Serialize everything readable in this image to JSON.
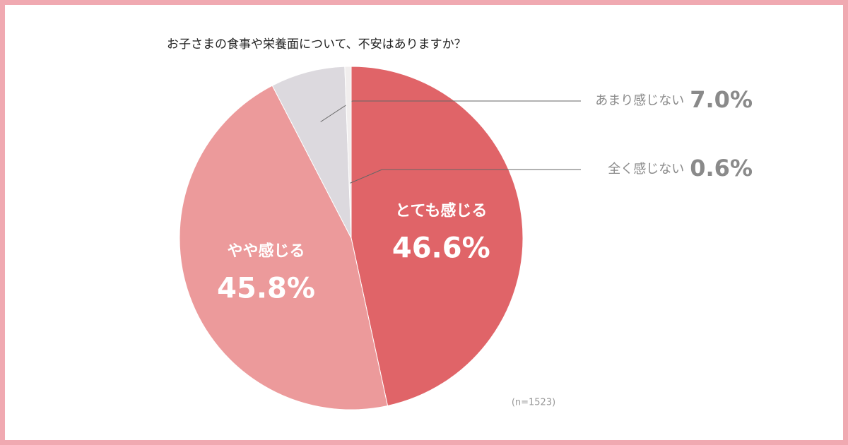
{
  "chart_data": {
    "type": "pie",
    "title": "お子さまの食事や栄養面について、不安はありますか？",
    "categories": [
      "とても感じる",
      "やや感じる",
      "あまり感じない",
      "全く感じない"
    ],
    "values": [
      46.6,
      45.8,
      7.0,
      0.6
    ],
    "value_labels": [
      "46.6%",
      "45.8%",
      "7.0%",
      "0.6%"
    ],
    "colors": [
      "#e06468",
      "#ec9a9b",
      "#dcd9de",
      "#f1eeee"
    ],
    "note": "(n=1523)"
  }
}
